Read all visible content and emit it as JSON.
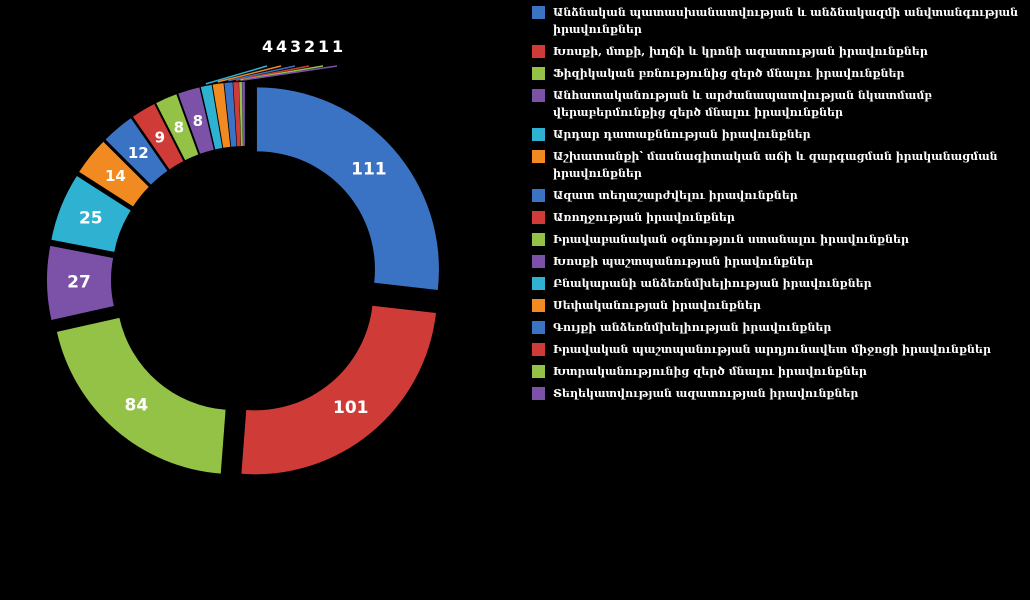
{
  "chart_data": {
    "type": "pie",
    "style": "exploded-donut",
    "colors": [
      "#3b73c4",
      "#cf3c38",
      "#93c247",
      "#7b52a8",
      "#2fb2d1",
      "#f08a21"
    ],
    "slices": [
      {
        "label": "Անձնական պատասխանատվության և անձնակազմի անվտանգության իրավունքներ",
        "value": 111,
        "value_label": "111"
      },
      {
        "label": "Խոսքի, մտքի, խղճի և կրոնի ազատության իրավունքներ",
        "value": 101,
        "value_label": "101"
      },
      {
        "label": "Ֆիզիկական բռնությունից զերծ մնալու իրավունքներ",
        "value": 84,
        "value_label": "84"
      },
      {
        "label": "Անհատականության և արժանապատվության նկատմամբ վերաբերմունքից զերծ մնալու իրավունքներ",
        "value": 27,
        "value_label": "27"
      },
      {
        "label": "Արդար դատաքննության իրավունքներ",
        "value": 25,
        "value_label": "25"
      },
      {
        "label": "Աշխատանքի՝ մասնագիտական աճի և զարգացման իրականացման իրավունքներ",
        "value": 14,
        "value_label": "14"
      },
      {
        "label": "Ազատ տեղաշարժվելու իրավունքներ",
        "value": 12,
        "value_label": "12"
      },
      {
        "label": "Առողջության իրավունքներ",
        "value": 9,
        "value_label": "9"
      },
      {
        "label": "Իրավաբանական օգնություն ստանալու իրավունքներ",
        "value": 8,
        "value_label": "8"
      },
      {
        "label": "Խոսքի պաշտպանության իրավունքներ",
        "value": 8,
        "value_label": "8"
      },
      {
        "label": "Բնակարանի անձեռնմխելիության իրավունքներ",
        "value": 4,
        "value_label": "4"
      },
      {
        "label": "Սեփականության իրավունքներ",
        "value": 4,
        "value_label": "4"
      },
      {
        "label": "Գույքի անձեռնմխելիության իրավունքներ",
        "value": 3,
        "value_label": "3"
      },
      {
        "label": "Իրավական պաշտպանության արդյունավետ միջոցի իրավունքներ",
        "value": 2,
        "value_label": "2"
      },
      {
        "label": "Խտրականությունից զերծ մնալու իրավունքներ",
        "value": 1,
        "value_label": "1"
      },
      {
        "label": "Տեղեկատվության ազատության իրավունքներ",
        "value": 1,
        "value_label": "1"
      }
    ],
    "legend_position": "right"
  }
}
